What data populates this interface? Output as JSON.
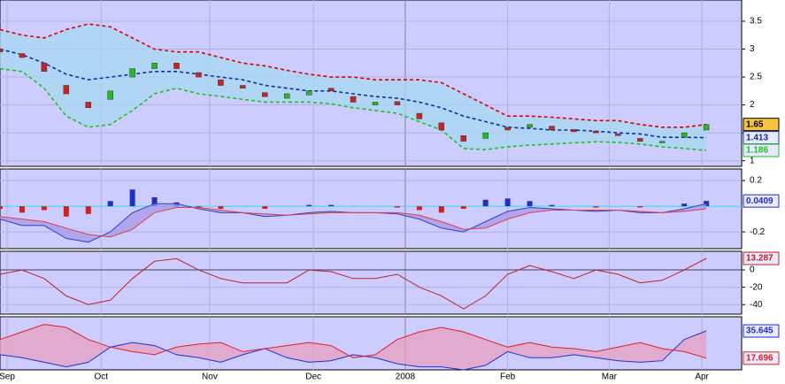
{
  "chart_data": [
    {
      "type": "candlestick",
      "x": [
        0,
        5,
        10,
        15,
        20,
        25,
        30,
        35,
        40,
        45,
        50,
        55,
        60,
        65,
        70,
        75,
        80,
        85,
        90,
        95,
        100,
        105,
        110,
        115,
        120,
        125,
        130,
        135,
        140,
        145,
        150,
        155,
        160
      ],
      "xlim": [
        0,
        168
      ],
      "ylim": [
        0.9,
        3.88
      ],
      "yticks": [
        1,
        1.5,
        2,
        2.5,
        3,
        3.5
      ],
      "grid": true,
      "open": [
        3.0,
        2.92,
        2.75,
        2.35,
        2.05,
        2.1,
        2.5,
        2.65,
        2.75,
        2.58,
        2.45,
        2.35,
        2.22,
        2.12,
        2.18,
        2.3,
        2.15,
        2.0,
        2.06,
        1.85,
        1.68,
        1.45,
        1.4,
        1.6,
        1.6,
        1.62,
        1.56,
        1.53,
        1.48,
        1.4,
        1.32,
        1.42,
        1.55
      ],
      "close": [
        2.95,
        2.85,
        2.6,
        2.2,
        1.95,
        2.25,
        2.65,
        2.75,
        2.65,
        2.5,
        2.35,
        2.3,
        2.15,
        2.2,
        2.25,
        2.25,
        2.05,
        2.05,
        2.0,
        1.75,
        1.55,
        1.35,
        1.5,
        1.55,
        1.65,
        1.55,
        1.52,
        1.5,
        1.45,
        1.35,
        1.35,
        1.5,
        1.65
      ],
      "up_color": "#22bb22",
      "down_color": "#cc2222",
      "close_label_color": "#f5c242",
      "band_fill": "#a8d8f0",
      "series": [
        {
          "color": "#e00000",
          "dash": true,
          "values": [
            3.35,
            3.25,
            3.2,
            3.35,
            3.45,
            3.4,
            3.2,
            3.0,
            2.95,
            2.95,
            2.85,
            2.75,
            2.7,
            2.62,
            2.55,
            2.5,
            2.5,
            2.45,
            2.45,
            2.45,
            2.4,
            2.2,
            2.0,
            1.8,
            1.8,
            1.78,
            1.75,
            1.72,
            1.72,
            1.65,
            1.6,
            1.6,
            1.65
          ]
        },
        {
          "color": "#1030a0",
          "dash": true,
          "label_last": true,
          "values": [
            3.0,
            2.9,
            2.75,
            2.55,
            2.45,
            2.5,
            2.55,
            2.6,
            2.6,
            2.55,
            2.5,
            2.45,
            2.35,
            2.3,
            2.25,
            2.25,
            2.2,
            2.15,
            2.12,
            2.05,
            1.95,
            1.8,
            1.7,
            1.6,
            1.58,
            1.55,
            1.55,
            1.53,
            1.5,
            1.48,
            1.42,
            1.42,
            1.413
          ]
        },
        {
          "color": "#20c020",
          "dash": true,
          "label_last": true,
          "values": [
            2.65,
            2.6,
            2.3,
            1.8,
            1.6,
            1.65,
            1.9,
            2.2,
            2.3,
            2.2,
            2.15,
            2.1,
            2.05,
            2.05,
            2.05,
            2.02,
            1.95,
            1.9,
            1.85,
            1.7,
            1.55,
            1.22,
            1.2,
            1.25,
            1.28,
            1.3,
            1.32,
            1.34,
            1.33,
            1.3,
            1.25,
            1.22,
            1.186
          ]
        }
      ]
    },
    {
      "type": "macd",
      "ylim": [
        -0.33,
        0.29
      ],
      "yticks": [
        0.2,
        -0.2
      ],
      "grid": true,
      "zero_color": "#33ddee",
      "fill": "#a898e8",
      "histogram": {
        "up_color": "#2030c0",
        "down_color": "#d02020",
        "label_last": true,
        "values": [
          -0.02,
          -0.05,
          -0.03,
          -0.08,
          -0.06,
          0.04,
          0.13,
          0.07,
          0.03,
          -0.01,
          -0.02,
          0,
          -0.02,
          0,
          0.01,
          0.01,
          0,
          0,
          -0.01,
          -0.03,
          -0.05,
          -0.02,
          0.05,
          0.06,
          0.04,
          0.01,
          0,
          -0.01,
          0,
          -0.01,
          0,
          0.02,
          0.0409
        ]
      },
      "series": [
        {
          "color": "#3040c0",
          "values": [
            -0.1,
            -0.15,
            -0.15,
            -0.25,
            -0.28,
            -0.2,
            -0.05,
            0.02,
            0.02,
            -0.02,
            -0.05,
            -0.05,
            -0.08,
            -0.07,
            -0.05,
            -0.04,
            -0.05,
            -0.05,
            -0.06,
            -0.1,
            -0.17,
            -0.2,
            -0.12,
            -0.04,
            -0.01,
            -0.02,
            -0.03,
            -0.04,
            -0.03,
            -0.05,
            -0.05,
            -0.02,
            0.02
          ]
        },
        {
          "color": "#e04040",
          "values": [
            -0.08,
            -0.1,
            -0.12,
            -0.17,
            -0.22,
            -0.24,
            -0.18,
            -0.05,
            -0.01,
            -0.01,
            -0.03,
            -0.05,
            -0.06,
            -0.07,
            -0.06,
            -0.05,
            -0.05,
            -0.05,
            -0.05,
            -0.07,
            -0.12,
            -0.18,
            -0.17,
            -0.1,
            -0.05,
            -0.03,
            -0.03,
            -0.03,
            -0.03,
            -0.04,
            -0.05,
            -0.04,
            -0.02
          ]
        }
      ]
    },
    {
      "type": "line",
      "ylim": [
        -51,
        21.5
      ],
      "yticks": [
        0,
        -20,
        -40
      ],
      "grid": true,
      "series": [
        {
          "color": "#c02020",
          "label_last": true,
          "values": [
            -5,
            0,
            -10,
            -30,
            -40,
            -35,
            -10,
            10,
            13,
            0,
            -10,
            -15,
            -15,
            -15,
            0,
            -2,
            -10,
            -10,
            -5,
            -20,
            -30,
            -45,
            -30,
            -5,
            5,
            -2,
            -10,
            0,
            -5,
            -15,
            -12,
            0,
            13.287
          ]
        }
      ]
    },
    {
      "type": "area",
      "ylim": [
        10,
        45
      ],
      "fill": "#e8a0c0",
      "xticks": [
        {
          "value": 1.6,
          "label": "Sep"
        },
        {
          "value": 22.9,
          "label": "Oct"
        },
        {
          "value": 47.5,
          "label": "Nov"
        },
        {
          "value": 71,
          "label": "Dec"
        },
        {
          "value": 91.8,
          "label": "2008"
        },
        {
          "value": 115,
          "label": "Feb"
        },
        {
          "value": 138,
          "label": "Mar"
        },
        {
          "value": 159,
          "label": "Apr"
        }
      ],
      "series": [
        {
          "color": "#2030d0",
          "label_last": true,
          "values": [
            20,
            18,
            15,
            12,
            15,
            25,
            28,
            26,
            20,
            18,
            15,
            20,
            24,
            18,
            15,
            16,
            20,
            18,
            14,
            12,
            12,
            10,
            13,
            22,
            18,
            18,
            20,
            18,
            16,
            15,
            16,
            30,
            35.645
          ]
        },
        {
          "color": "#e02020",
          "label_last": true,
          "values": [
            30,
            35,
            40,
            38,
            30,
            25,
            22,
            20,
            25,
            27,
            28,
            22,
            24,
            26,
            28,
            26,
            18,
            20,
            30,
            35,
            38,
            35,
            30,
            25,
            28,
            25,
            24,
            22,
            25,
            28,
            24,
            22,
            17.696
          ]
        }
      ]
    }
  ]
}
